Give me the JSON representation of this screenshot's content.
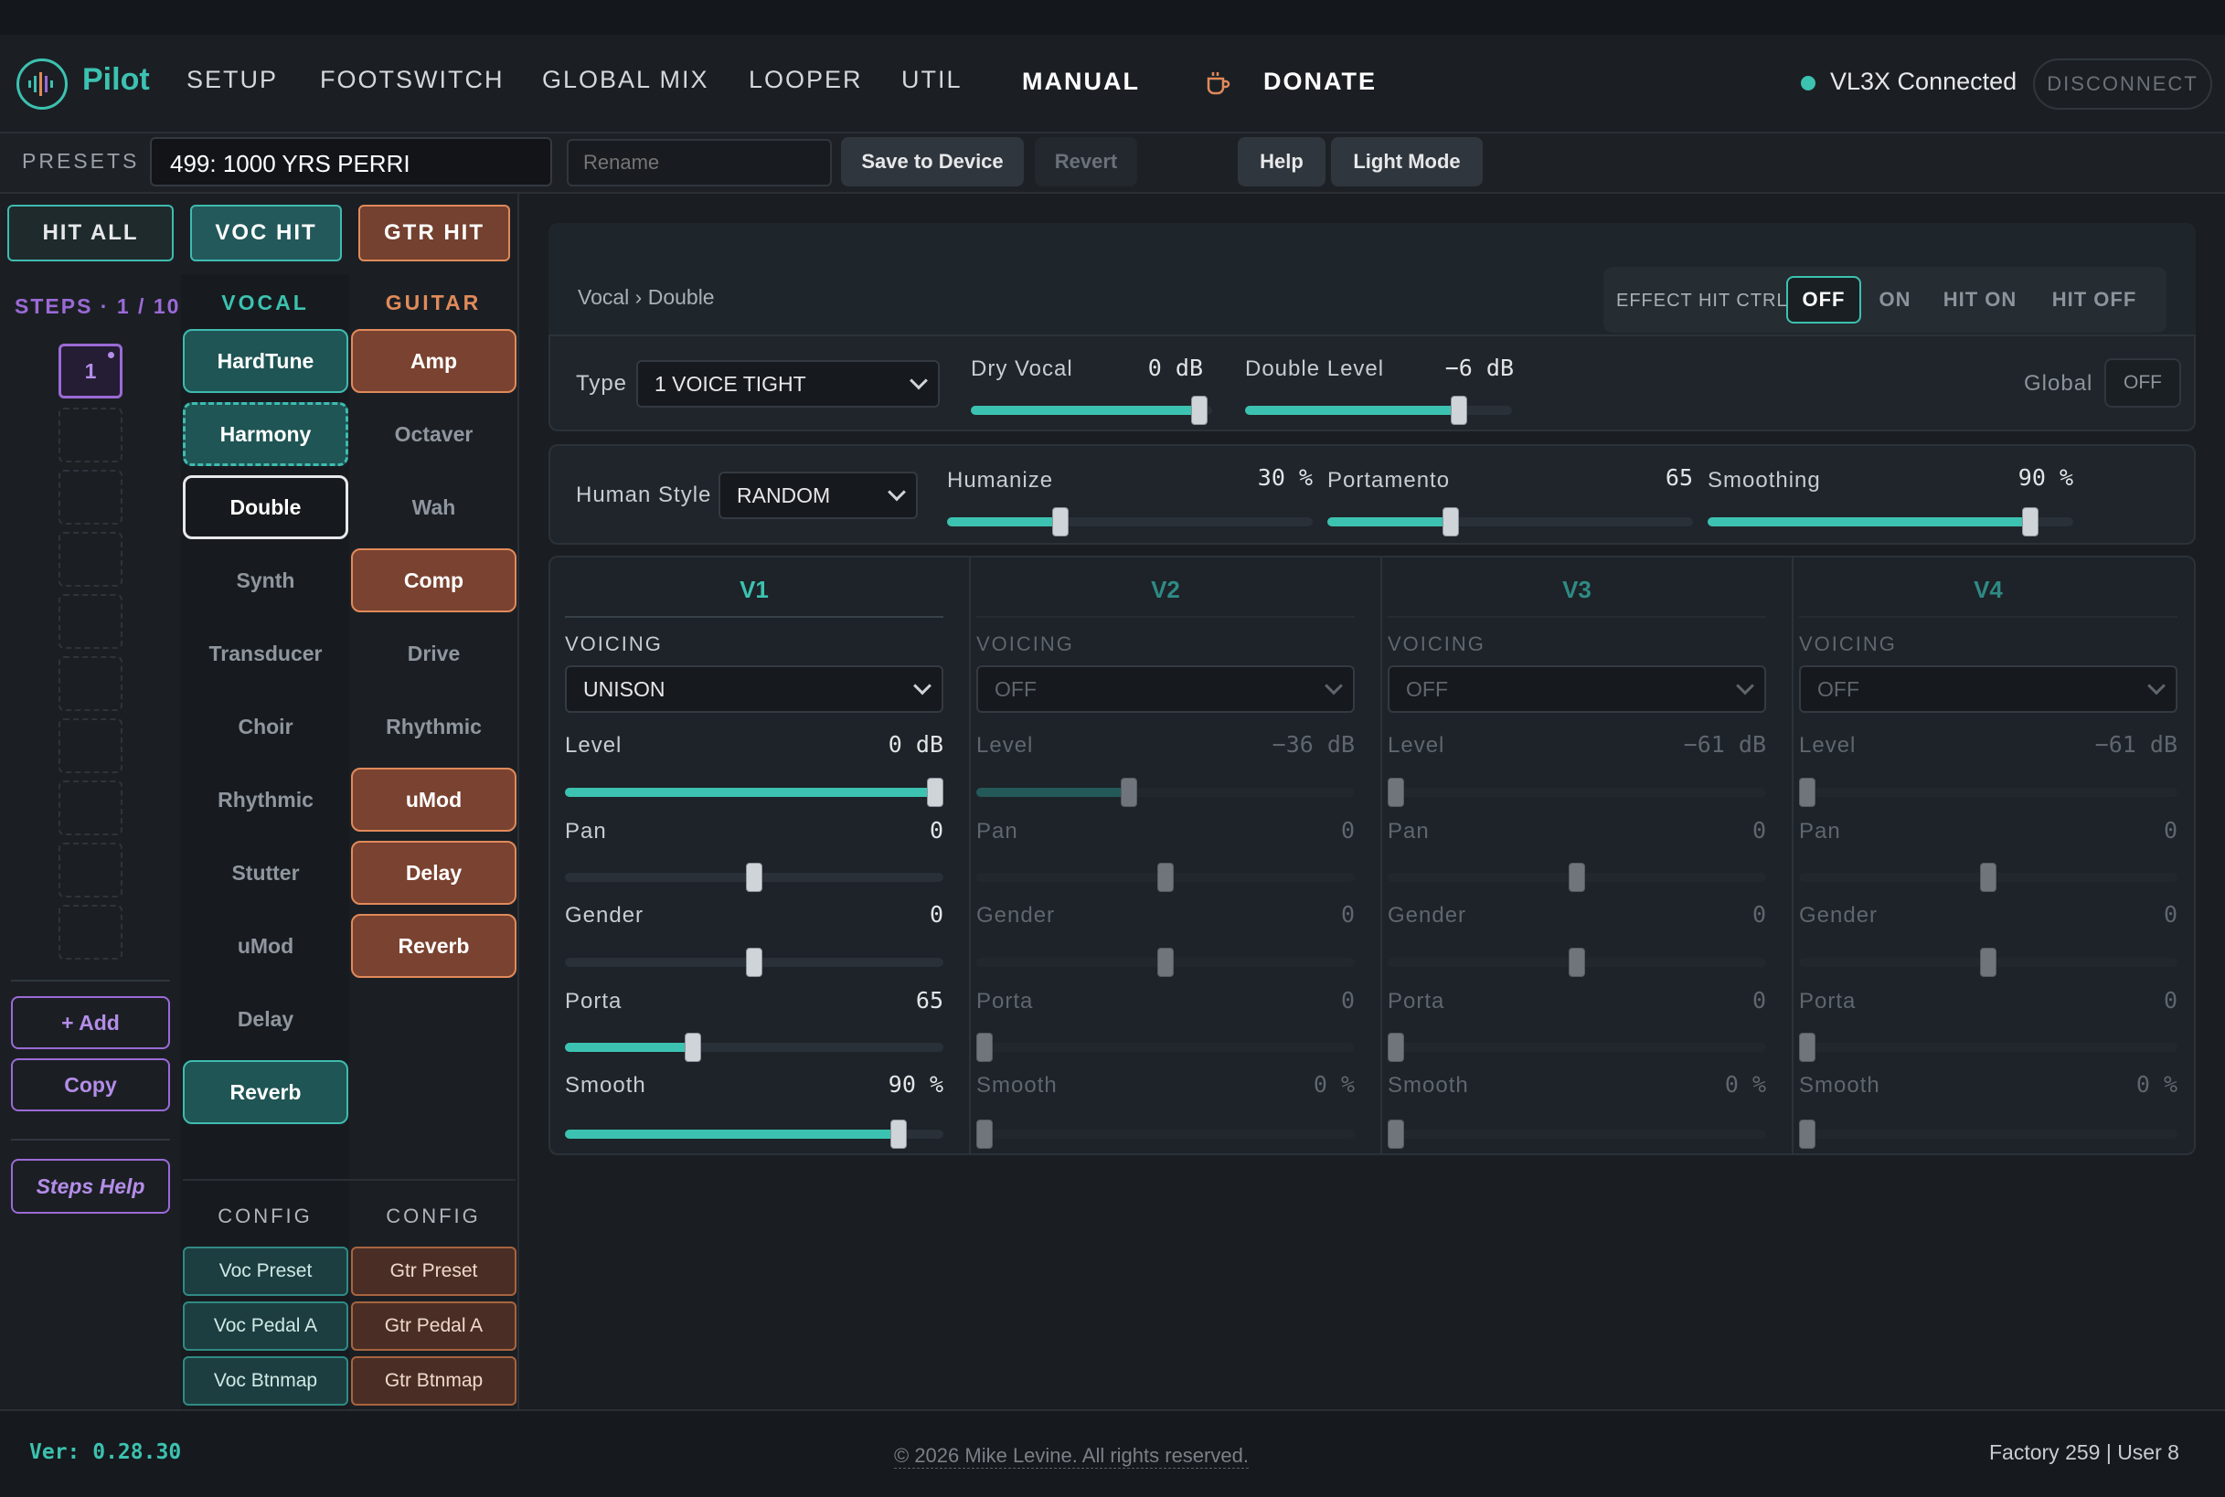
{
  "app": {
    "name": "Pilot"
  },
  "nav": {
    "setup": "SETUP",
    "footswitch": "FOOTSWITCH",
    "global_mix": "GLOBAL MIX",
    "looper": "LOOPER",
    "util": "UTIL",
    "manual": "MANUAL",
    "donate": "DONATE",
    "status": "VL3X Connected",
    "disconnect": "DISCONNECT"
  },
  "presets": {
    "label": "PRESETS",
    "current": "499: 1000 YRS PERRI",
    "rename_placeholder": "Rename",
    "save": "Save to Device",
    "revert": "Revert",
    "help": "Help",
    "light_mode": "Light Mode"
  },
  "hits": {
    "all": "HIT ALL",
    "voc": "VOC HIT",
    "gtr": "GTR HIT"
  },
  "steps": {
    "label": "STEPS · 1 / 10",
    "current": "1",
    "add": "+ Add",
    "copy": "Copy",
    "help": "Steps Help"
  },
  "vocal": {
    "header": "VOCAL",
    "items": [
      "HardTune",
      "Harmony",
      "Double",
      "Synth",
      "Transducer",
      "Choir",
      "Rhythmic",
      "Stutter",
      "uMod",
      "Delay",
      "Reverb"
    ],
    "config": "CONFIG",
    "cfg": [
      "Voc Preset",
      "Voc Pedal A",
      "Voc Btnmap"
    ]
  },
  "guitar": {
    "header": "GUITAR",
    "items": [
      "Amp",
      "Octaver",
      "Wah",
      "Comp",
      "Drive",
      "Rhythmic",
      "uMod",
      "Delay",
      "Reverb"
    ],
    "config": "CONFIG",
    "cfg": [
      "Gtr Preset",
      "Gtr Pedal A",
      "Gtr Btnmap"
    ]
  },
  "editor": {
    "breadcrumb": "Vocal › Double",
    "hit_ctrl": {
      "label": "EFFECT HIT CTRL:",
      "options": [
        "OFF",
        "ON",
        "HIT ON",
        "HIT OFF"
      ],
      "selected": "OFF"
    },
    "type": {
      "label": "Type",
      "value": "1 VOICE TIGHT"
    },
    "dry_vocal": {
      "label": "Dry Vocal",
      "value": "0",
      "unit": "dB",
      "level": 0.98
    },
    "double_level": {
      "label": "Double Level",
      "value": "−6",
      "unit": "dB",
      "level": 0.82
    },
    "global": {
      "label": "Global",
      "value": "OFF"
    },
    "human_style": {
      "label": "Human Style",
      "value": "RANDOM"
    },
    "humanize": {
      "label": "Humanize",
      "value": "30",
      "unit": "%",
      "level": 0.3
    },
    "portamento": {
      "label": "Portamento",
      "value": "65",
      "level": 0.33
    },
    "smoothing": {
      "label": "Smoothing",
      "value": "90",
      "unit": "%",
      "level": 0.9
    }
  },
  "voices": [
    {
      "name": "V1",
      "voicing_label": "VOICING",
      "voicing": "UNISON",
      "level": "0",
      "level_unit": "dB",
      "level_pos": 1.0,
      "pan": "0",
      "pan_pos": 0.5,
      "gender": "0",
      "gender_pos": 0.5,
      "porta": "65",
      "porta_pos": 0.33,
      "smooth": "90",
      "smooth_unit": "%",
      "smooth_pos": 0.9
    },
    {
      "name": "V2",
      "voicing_label": "VOICING",
      "voicing": "OFF",
      "level": "−36",
      "level_unit": "dB",
      "level_pos": 0.4,
      "pan": "0",
      "pan_pos": 0.5,
      "gender": "0",
      "gender_pos": 0.5,
      "porta": "0",
      "porta_pos": 0,
      "smooth": "0",
      "smooth_unit": "%",
      "smooth_pos": 0
    },
    {
      "name": "V3",
      "voicing_label": "VOICING",
      "voicing": "OFF",
      "level": "−61",
      "level_unit": "dB",
      "level_pos": 0,
      "pan": "0",
      "pan_pos": 0.5,
      "gender": "0",
      "gender_pos": 0.5,
      "porta": "0",
      "porta_pos": 0,
      "smooth": "0",
      "smooth_unit": "%",
      "smooth_pos": 0
    },
    {
      "name": "V4",
      "voicing_label": "VOICING",
      "voicing": "OFF",
      "level": "−61",
      "level_unit": "dB",
      "level_pos": 0,
      "pan": "0",
      "pan_pos": 0.5,
      "gender": "0",
      "gender_pos": 0.5,
      "porta": "0",
      "porta_pos": 0,
      "smooth": "0",
      "smooth_unit": "%",
      "smooth_pos": 0
    }
  ],
  "param_labels": {
    "level": "Level",
    "pan": "Pan",
    "gender": "Gender",
    "porta": "Porta",
    "smooth": "Smooth"
  },
  "footer": {
    "version": "Ver: 0.28.30",
    "copyright": "© 2026 Mike Levine. All rights reserved.",
    "counts": "Factory 259 | User 8"
  },
  "colors": {
    "accent": "#3cc2b0",
    "guitar": "#e08a5a",
    "steps": "#9b6ad6"
  }
}
